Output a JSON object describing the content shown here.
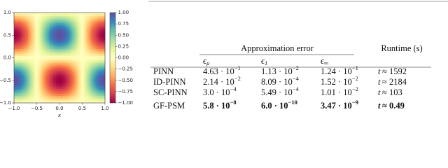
{
  "figure": {
    "x_ticks": [
      "−1.0",
      "−0.5",
      "0.0",
      "0.5",
      "1.0"
    ],
    "y_ticks": [
      "1.0",
      "0.5",
      "0.0",
      "−0.5",
      "−1.0"
    ],
    "x_label": "x",
    "colorbar_ticks": [
      "1.00",
      "0.75",
      "0.50",
      "0.25",
      "0.00",
      "−0.25",
      "−0.50",
      "−0.75",
      "−1.00"
    ]
  },
  "table": {
    "group_headers": [
      "Approximation error",
      "Runtime (s)"
    ],
    "columns": [
      {
        "symbol": "ϵ",
        "sub": "μ"
      },
      {
        "symbol": "ϵ",
        "sub": "1"
      },
      {
        "symbol": "ϵ",
        "sub": "∞"
      }
    ],
    "rows": [
      {
        "method": "PINN",
        "bold": false,
        "cells": [
          {
            "base": "4.63 · 10",
            "exp": "−1"
          },
          {
            "base": "1.13 · 10",
            "exp": "−2"
          },
          {
            "base": "1.24 · 10",
            "exp": "−1"
          }
        ],
        "runtime": {
          "var": "t",
          "rest": "≈ 1592"
        }
      },
      {
        "method": "ID-PINN",
        "bold": false,
        "cells": [
          {
            "base": "2.14 · 10",
            "exp": "−2"
          },
          {
            "base": "8.09 · 10",
            "exp": "−4"
          },
          {
            "base": "1.52 · 10",
            "exp": "−2"
          }
        ],
        "runtime": {
          "var": "t",
          "rest": "≈ 2184"
        }
      },
      {
        "method": "SC-PINN",
        "bold": false,
        "cells": [
          {
            "base": "3.0 · 10",
            "exp": "−4"
          },
          {
            "base": "5.49 · 10",
            "exp": "−4"
          },
          {
            "base": "1.01 · 10",
            "exp": "−2"
          }
        ],
        "runtime": {
          "var": "t",
          "rest": "≈ 103"
        }
      },
      {
        "method": "GF-PSM",
        "bold": true,
        "cells": [
          {
            "base": "5.8 · 10",
            "exp": "−8"
          },
          {
            "base": "6.0 · 10",
            "exp": "−10"
          },
          {
            "base": "3.47 · 10",
            "exp": "−9"
          }
        ],
        "runtime": {
          "var": "t",
          "rest": "≈ 0.49"
        }
      }
    ]
  }
}
